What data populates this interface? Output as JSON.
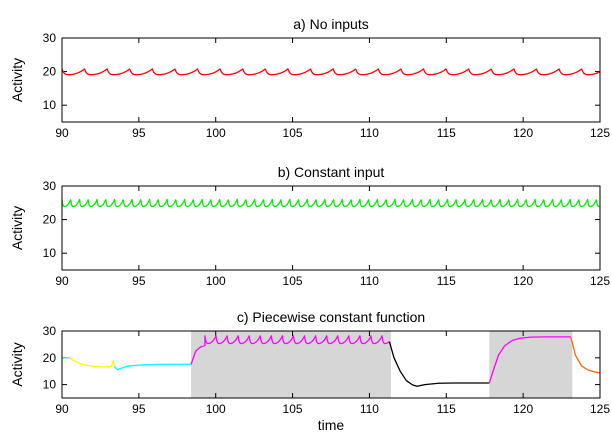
{
  "chart_data": [
    {
      "type": "line",
      "title": "a) No inputs",
      "xlabel": "",
      "ylabel": "Activity",
      "xlim": [
        90,
        125
      ],
      "ylim": [
        5,
        30
      ],
      "xticks": [
        "90",
        "95",
        "100",
        "105",
        "110",
        "115",
        "120",
        "125"
      ],
      "yticks": [
        "10",
        "20",
        "30"
      ],
      "grid": false,
      "series": [
        {
          "color": "#ff0000",
          "pattern": "periodic spikes",
          "period": 1.47,
          "baseline": 19.0,
          "peak": 20.8,
          "x_range": [
            90,
            125
          ]
        }
      ]
    },
    {
      "type": "line",
      "title": "b) Constant input",
      "xlabel": "",
      "ylabel": "Activity",
      "xlim": [
        90,
        125
      ],
      "ylim": [
        5,
        30
      ],
      "xticks": [
        "90",
        "95",
        "100",
        "105",
        "110",
        "115",
        "120",
        "125"
      ],
      "yticks": [
        "10",
        "20",
        "30"
      ],
      "grid": false,
      "series": [
        {
          "color": "#00ee00",
          "pattern": "periodic spikes",
          "period": 0.57,
          "baseline": 23.8,
          "peak": 26.0,
          "x_range": [
            90,
            125
          ]
        }
      ]
    },
    {
      "type": "line",
      "title": "c) Piecewise constant function",
      "xlabel": "time",
      "ylabel": "Activity",
      "xlim": [
        90,
        125
      ],
      "ylim": [
        5,
        30
      ],
      "xticks": [
        "90",
        "95",
        "100",
        "105",
        "110",
        "115",
        "120",
        "125"
      ],
      "yticks": [
        "10",
        "20",
        "30"
      ],
      "grid": false,
      "shaded_intervals": [
        [
          98.4,
          111.4
        ],
        [
          117.8,
          123.2
        ]
      ],
      "shade_color": "#d6d6d6",
      "series": [
        {
          "color": "#00ffff",
          "x": [
            90.0,
            90.3,
            90.5
          ],
          "y": [
            20.0,
            20.0,
            20.0
          ]
        },
        {
          "color": "#ffff00",
          "x": [
            90.5,
            90.8,
            91.2,
            91.6,
            92.0,
            92.5,
            92.9,
            93.2,
            93.35,
            93.4
          ],
          "y": [
            20.0,
            18.8,
            17.8,
            17.2,
            16.9,
            16.7,
            16.6,
            16.7,
            18.9,
            16.8
          ]
        },
        {
          "color": "#00ffff",
          "x": [
            93.4,
            93.6,
            94.2,
            95.0,
            96.0,
            97.0,
            98.0,
            98.4
          ],
          "y": [
            16.8,
            15.6,
            16.8,
            17.3,
            17.5,
            17.6,
            17.6,
            17.6
          ]
        },
        {
          "color": "#ff00ff",
          "x": [
            98.4,
            98.7,
            99.0,
            99.3
          ],
          "y": [
            17.6,
            22.5,
            24.0,
            24.6
          ],
          "spikes_after": {
            "start": 99.3,
            "end": 111.3,
            "period": 0.72,
            "baseline": 25.2,
            "peak": 28.2
          }
        },
        {
          "color": "#000000",
          "x": [
            111.3,
            111.6,
            112.0,
            112.4,
            112.8,
            113.1,
            113.6,
            114.5,
            115.5,
            116.5,
            117.8
          ],
          "y": [
            26.0,
            20.0,
            15.0,
            11.5,
            9.9,
            9.4,
            10.0,
            10.5,
            10.6,
            10.6,
            10.6
          ]
        },
        {
          "color": "#ff00ff",
          "x": [
            117.8,
            118.1,
            118.4,
            118.8,
            119.3,
            119.8,
            120.5,
            121.5,
            122.5,
            123.1
          ],
          "y": [
            10.6,
            16.0,
            21.0,
            24.5,
            26.5,
            27.3,
            27.7,
            27.8,
            27.8,
            27.8
          ]
        },
        {
          "color": "#ff6600",
          "x": [
            123.1,
            123.4,
            123.8,
            124.2,
            124.6,
            125.0
          ],
          "y": [
            27.8,
            21.0,
            17.0,
            15.5,
            14.8,
            14.4
          ]
        }
      ]
    }
  ]
}
